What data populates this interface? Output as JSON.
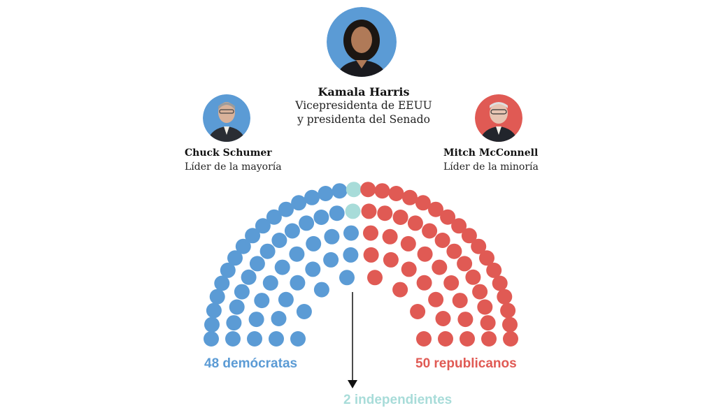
{
  "colors": {
    "democrat": "#5b9bd5",
    "republican": "#e05a54",
    "independent": "#a8dcd9",
    "arrow": "#111111"
  },
  "president": {
    "name": "Kamala Harris",
    "role_line1": "Vicepresidenta de EEUU",
    "role_line2": "y presidenta del Senado"
  },
  "majority_leader": {
    "name": "Chuck Schumer",
    "role": "Líder de la mayoría"
  },
  "minority_leader": {
    "name": "Mitch McConnell",
    "role": "Líder de la minoría"
  },
  "seats": {
    "democrats": 48,
    "independents": 2,
    "republicans": 50
  },
  "labels": {
    "democrats": "48 demócratas",
    "republicans": "50 republicanos",
    "independents": "2 independientes"
  }
}
